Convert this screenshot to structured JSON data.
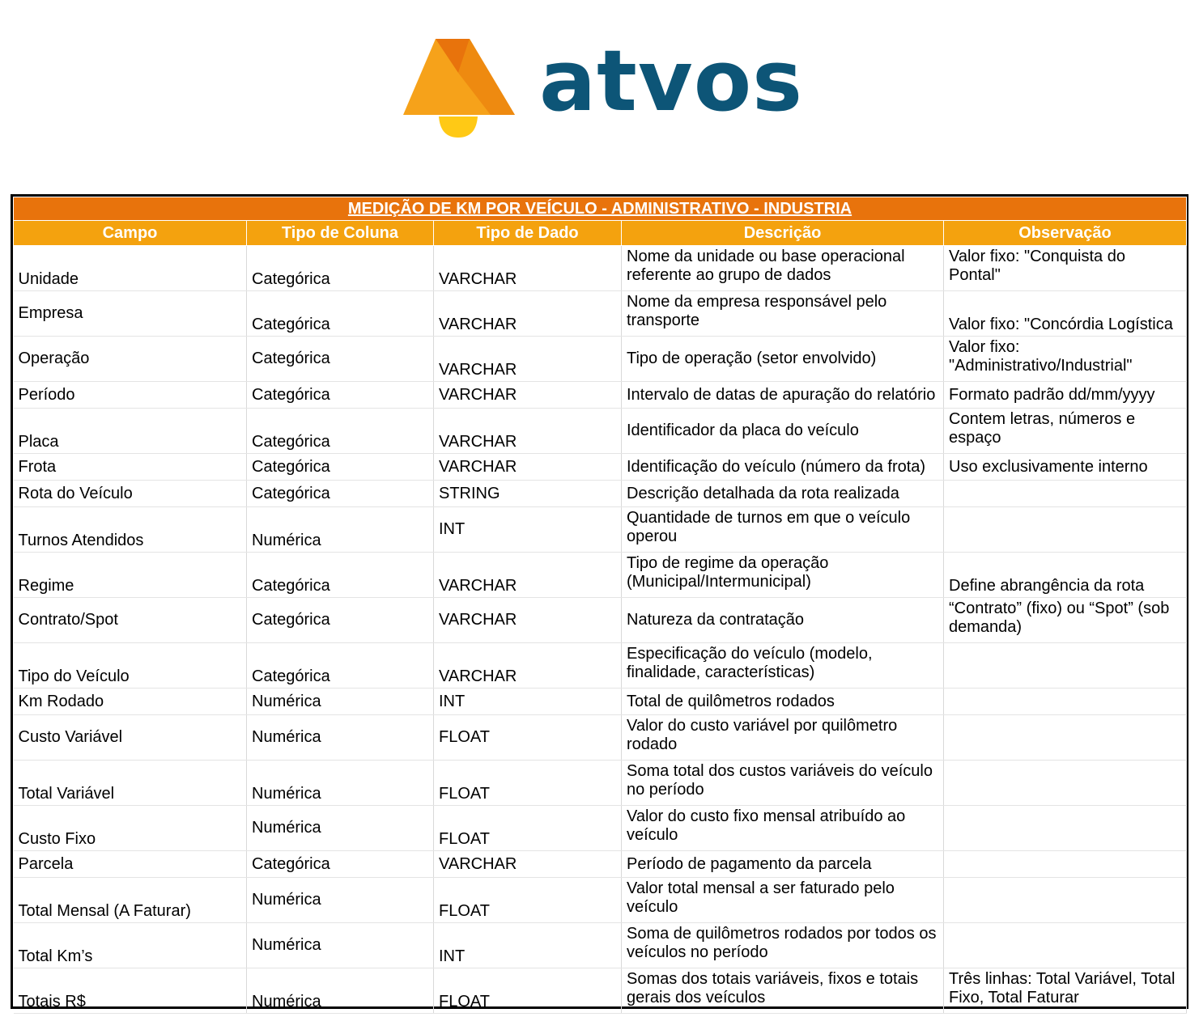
{
  "logo": {
    "wordmark": "atvos"
  },
  "table": {
    "title": "MEDIÇÃO DE KM POR VEÍCULO - ADMINISTRATIVO - INDUSTRIA",
    "headers": [
      "Campo",
      "Tipo de Coluna",
      "Tipo de Dado",
      "Descrição",
      "Observação"
    ],
    "rows": [
      [
        "Unidade",
        "Categórica",
        "VARCHAR",
        "Nome da unidade ou base operacional referente ao grupo de dados",
        "Valor fixo: \"Conquista do Pontal\""
      ],
      [
        "Empresa",
        "Categórica",
        "VARCHAR",
        "Nome da empresa responsável pelo transporte",
        "Valor fixo: \"Concórdia Logística"
      ],
      [
        "Operação",
        "Categórica",
        "VARCHAR",
        "Tipo de operação (setor envolvido)",
        "Valor fixo: \"Administrativo/Industrial\""
      ],
      [
        "Período",
        "Categórica",
        "VARCHAR",
        "Intervalo de datas de apuração do relatório",
        "Formato padrão dd/mm/yyyy"
      ],
      [
        "Placa",
        "Categórica",
        "VARCHAR",
        "Identificador da placa do veículo",
        "Contem letras, números e espaço"
      ],
      [
        "Frota",
        "Categórica",
        "VARCHAR",
        "Identificação do veículo (número da frota)",
        "Uso exclusivamente interno"
      ],
      [
        "Rota do Veículo",
        "Categórica",
        "STRING",
        "Descrição detalhada da rota realizada",
        ""
      ],
      [
        "Turnos Atendidos",
        "Numérica",
        "INT",
        "Quantidade de turnos em que o veículo operou",
        ""
      ],
      [
        "Regime",
        "Categórica",
        "VARCHAR",
        "Tipo de regime da operação (Municipal/Intermunicipal)",
        "Define abrangência da rota"
      ],
      [
        "Contrato/Spot",
        "Categórica",
        "VARCHAR",
        "Natureza da contratação",
        "“Contrato” (fixo) ou “Spot” (sob demanda)"
      ],
      [
        "Tipo do Veículo",
        "Categórica",
        "VARCHAR",
        "Especificação do veículo (modelo, finalidade, características)",
        ""
      ],
      [
        "Km Rodado",
        "Numérica",
        "INT",
        "Total de quilômetros rodados",
        ""
      ],
      [
        "Custo Variável",
        "Numérica",
        "FLOAT",
        "Valor do custo variável por quilômetro rodado",
        ""
      ],
      [
        "Total Variável",
        "Numérica",
        "FLOAT",
        "Soma total dos custos variáveis do veículo no período",
        ""
      ],
      [
        "Custo Fixo",
        "Numérica",
        "FLOAT",
        "Valor do custo fixo mensal atribuído ao veículo",
        ""
      ],
      [
        "Parcela",
        "Categórica",
        "VARCHAR",
        "Período de pagamento da parcela",
        ""
      ],
      [
        "Total Mensal (A Faturar)",
        "Numérica",
        "FLOAT",
        "Valor total mensal a ser faturado pelo veículo",
        ""
      ],
      [
        "Total Km’s",
        "Numérica",
        "INT",
        "Soma de quilômetros rodados por todos os veículos no período",
        ""
      ],
      [
        "Totais R$",
        "Numérica",
        "FLOAT",
        "Somas dos totais variáveis, fixos e totais gerais dos veículos",
        "Três linhas: Total Variável, Total Fixo, Total Faturar"
      ]
    ]
  }
}
